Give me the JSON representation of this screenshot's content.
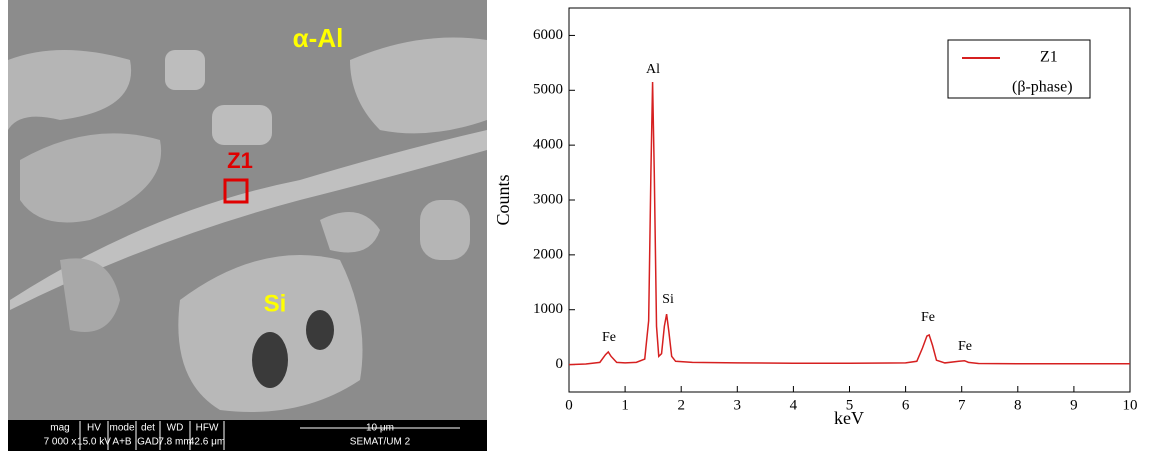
{
  "image": {
    "labels": {
      "alpha": "α-Al",
      "z1": "Z1",
      "si": "Si"
    },
    "info": {
      "headers": [
        "mag",
        "HV",
        "mode",
        "det",
        "WD",
        "HFW"
      ],
      "values": [
        "7 000 x",
        "15.0 kV",
        "A+B",
        "GAD",
        "7.8 mm",
        "42.6 μm"
      ],
      "scale": "10 μm",
      "lab": "SEMAT/UM 2"
    }
  },
  "chart_data": {
    "type": "line",
    "x_label": "keV",
    "y_label": "Counts",
    "x": [
      0,
      0.3,
      0.55,
      0.65,
      0.7,
      0.75,
      0.85,
      1.0,
      1.2,
      1.35,
      1.42,
      1.46,
      1.49,
      1.52,
      1.56,
      1.6,
      1.65,
      1.7,
      1.74,
      1.78,
      1.83,
      1.9,
      2.2,
      3,
      4,
      5,
      6,
      6.2,
      6.3,
      6.38,
      6.42,
      6.48,
      6.55,
      6.7,
      6.95,
      7.05,
      7.12,
      7.3,
      8,
      9,
      10
    ],
    "series": [
      {
        "name": "Z1",
        "color": "#d62020",
        "values": [
          0,
          10,
          40,
          180,
          230,
          150,
          40,
          30,
          40,
          100,
          800,
          3500,
          5150,
          3500,
          700,
          150,
          200,
          700,
          920,
          600,
          150,
          60,
          40,
          30,
          25,
          25,
          30,
          60,
          300,
          520,
          540,
          350,
          80,
          30,
          60,
          70,
          40,
          20,
          15,
          15,
          15
        ]
      }
    ],
    "legend_note": "(β-phase)",
    "legend": "upper right",
    "annotations": [
      "Fe",
      "Al",
      "Si",
      "Fe",
      "Fe"
    ],
    "xlim": [
      0,
      10
    ],
    "xticks": [
      0,
      1,
      2,
      3,
      4,
      5,
      6,
      7,
      8,
      9,
      10
    ],
    "ylim": [
      -500,
      6500
    ],
    "yticks": [
      0,
      1000,
      2000,
      3000,
      4000,
      5000,
      6000
    ]
  }
}
